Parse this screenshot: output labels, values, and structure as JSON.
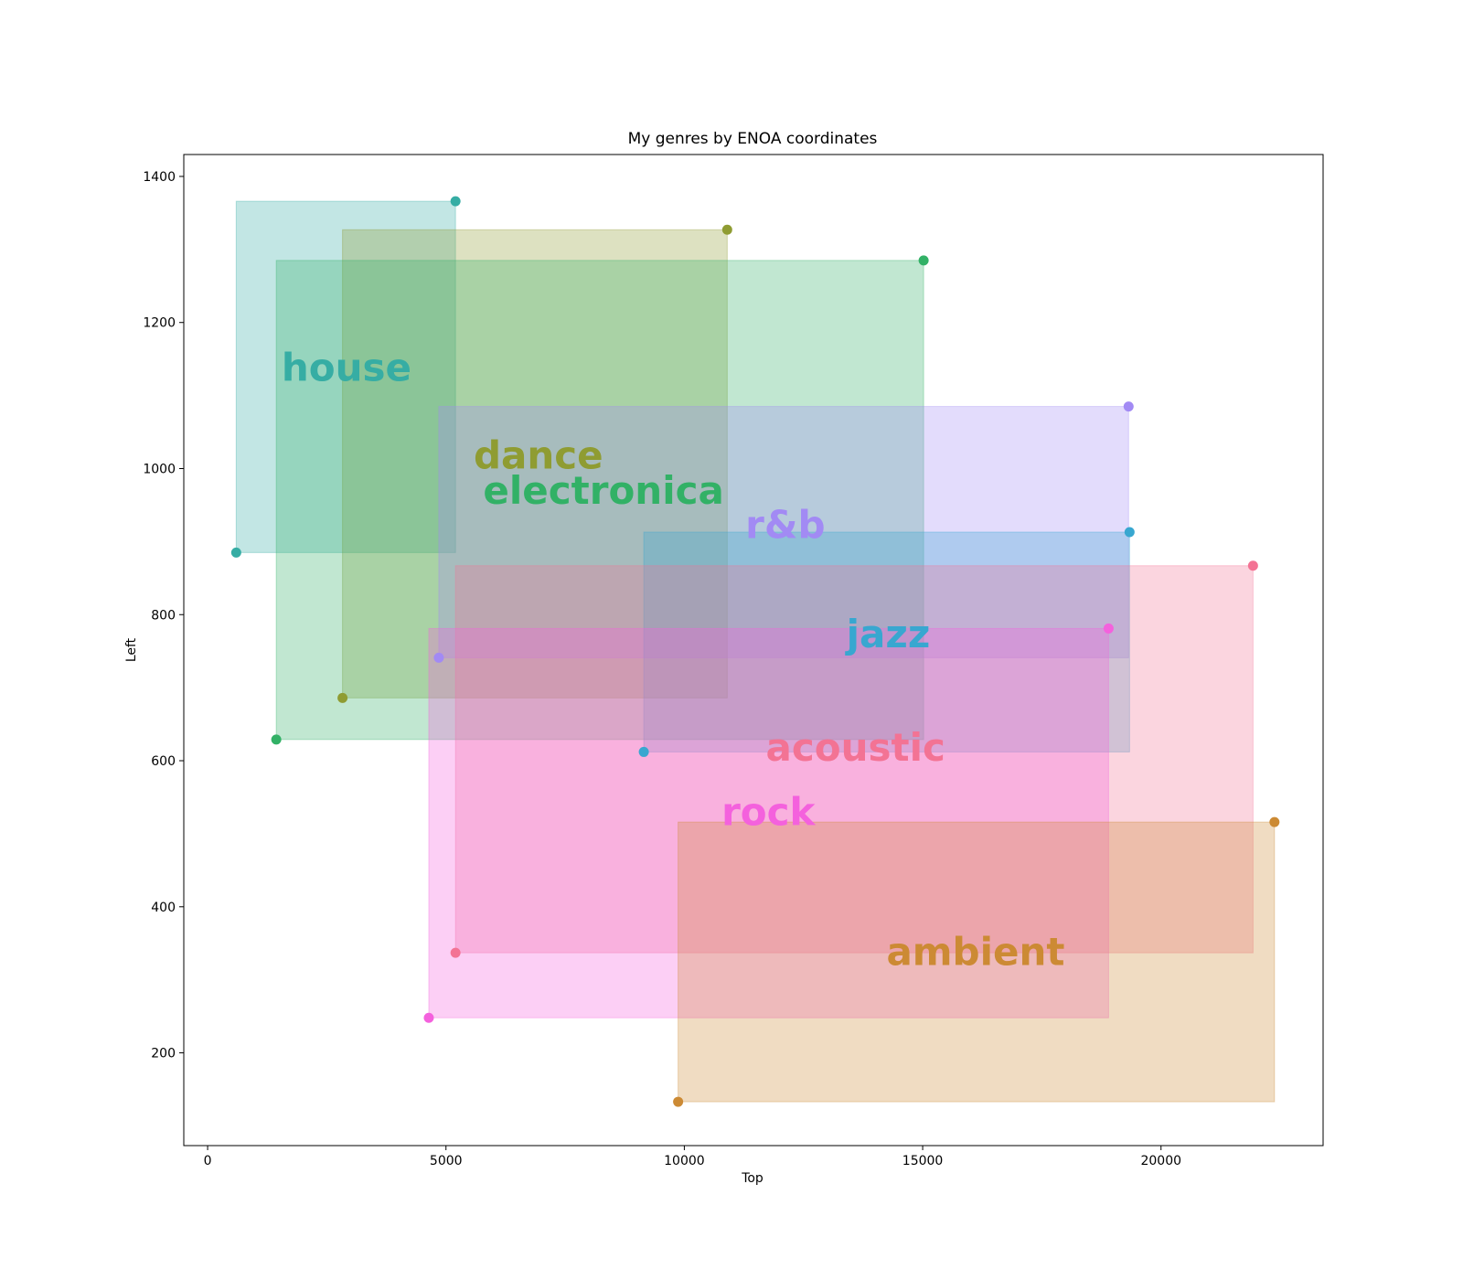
{
  "chart_data": {
    "type": "scatter",
    "title": "My genres by ENOA coordinates",
    "xlabel": "Top",
    "ylabel": "Left",
    "xlim": [
      -500,
      23400
    ],
    "ylim": [
      73,
      1430
    ],
    "x_ticks": [
      0,
      5000,
      10000,
      15000,
      20000
    ],
    "y_ticks": [
      200,
      400,
      600,
      800,
      1000,
      1200,
      1400
    ],
    "grid": false,
    "legend": "none",
    "series": [
      {
        "name": "house",
        "color": "#36ada4",
        "x": [
          600,
          5200
        ],
        "y": [
          885,
          1366
        ],
        "label_pos": [
          1550,
          1120
        ]
      },
      {
        "name": "dance",
        "color": "#8f9c32",
        "x": [
          2830,
          10900
        ],
        "y": [
          686,
          1327
        ],
        "label_pos": [
          5580,
          1000
        ]
      },
      {
        "name": "electronica",
        "color": "#32b166",
        "x": [
          1440,
          15020
        ],
        "y": [
          629,
          1285
        ],
        "label_pos": [
          5780,
          952
        ]
      },
      {
        "name": "r&b",
        "color": "#a28af4",
        "x": [
          4850,
          19320
        ],
        "y": [
          741,
          1085
        ],
        "label_pos": [
          11280,
          905
        ]
      },
      {
        "name": "jazz",
        "color": "#38a7d0",
        "x": [
          9150,
          19340
        ],
        "y": [
          612,
          913
        ],
        "label_pos": [
          13400,
          755
        ]
      },
      {
        "name": "acoustic",
        "color": "#f37394",
        "x": [
          5200,
          21930
        ],
        "y": [
          337,
          867
        ],
        "label_pos": [
          11710,
          600
        ]
      },
      {
        "name": "rock",
        "color": "#f461dd",
        "x": [
          4640,
          18900
        ],
        "y": [
          248,
          781
        ],
        "label_pos": [
          10780,
          512
        ]
      },
      {
        "name": "ambient",
        "color": "#cc8a34",
        "x": [
          9870,
          22380
        ],
        "y": [
          133,
          516
        ],
        "label_pos": [
          14240,
          320
        ]
      }
    ]
  }
}
